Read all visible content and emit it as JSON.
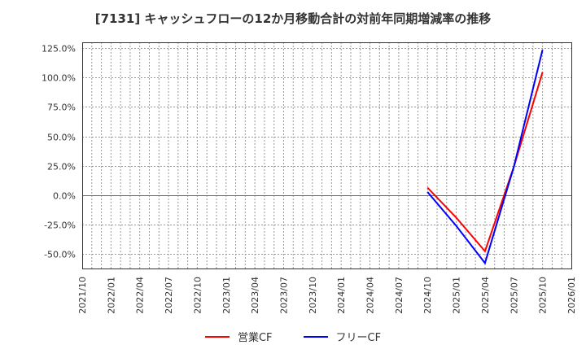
{
  "title": "[7131]  キャッシュフローの12か月移動合計の対前年同期増減率の推移",
  "legend": {
    "items": [
      {
        "label": "営業CF",
        "color": "#ff0000"
      },
      {
        "label": "フリーCF",
        "color": "#0000ff"
      }
    ]
  },
  "chart_data": {
    "type": "line",
    "title": "[7131]  キャッシュフローの12か月移動合計の対前年同期増減率の推移",
    "xlabel": "",
    "ylabel": "",
    "ylim": [
      -62,
      130
    ],
    "grid": true,
    "legend_position": "bottom",
    "y_ticks": [
      "125.0%",
      "100.0%",
      "75.0%",
      "50.0%",
      "25.0%",
      "0.0%",
      "-25.0%",
      "-50.0%"
    ],
    "x_ticks": [
      "2021/10",
      "2022/01",
      "2022/04",
      "2022/07",
      "2022/10",
      "2023/01",
      "2023/04",
      "2023/07",
      "2023/10",
      "2024/01",
      "2024/04",
      "2024/07",
      "2024/10",
      "2025/01",
      "2025/04",
      "2025/07",
      "2025/10",
      "2026/01"
    ],
    "x": [
      "2024/10",
      "2025/01",
      "2025/04",
      "2025/07",
      "2025/10"
    ],
    "series": [
      {
        "name": "営業CF",
        "color": "#ff0000",
        "values": [
          6.5,
          -19.0,
          -47.5,
          24.0,
          104.5
        ]
      },
      {
        "name": "フリーCF",
        "color": "#0000ff",
        "values": [
          2.8,
          -26.0,
          -57.5,
          24.0,
          123.5
        ]
      }
    ]
  }
}
